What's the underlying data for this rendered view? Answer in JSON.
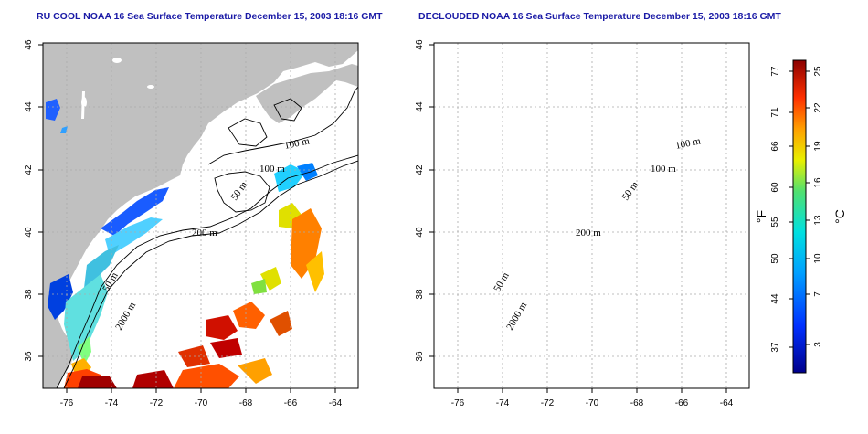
{
  "titles": {
    "left": "RU COOL NOAA 16 Sea Surface Temperature December 15, 2003 18:16 GMT",
    "right": "DECLOUDED NOAA 16 Sea Surface Temperature December 15, 2003 18:16 GMT"
  },
  "axes": {
    "x_ticks": [
      "-76",
      "-74",
      "-72",
      "-70",
      "-68",
      "-66",
      "-64"
    ],
    "y_ticks": [
      "36",
      "38",
      "40",
      "42",
      "44",
      "46"
    ]
  },
  "contour_labels": [
    "100 m",
    "100 m",
    "50 m",
    "200 m",
    "50 m",
    "2000 m"
  ],
  "colorbar": {
    "fahrenheit_ticks": [
      "77",
      "71",
      "66",
      "60",
      "55",
      "50",
      "44",
      "37"
    ],
    "celsius_ticks": [
      "25",
      "22",
      "19",
      "16",
      "13",
      "10",
      "7",
      "3"
    ],
    "fahrenheit_unit": "°F",
    "celsius_unit": "°C"
  },
  "colors": {
    "land": "#c0c0c0",
    "title": "#1a1aa6",
    "grid": "#aaaaaa"
  }
}
